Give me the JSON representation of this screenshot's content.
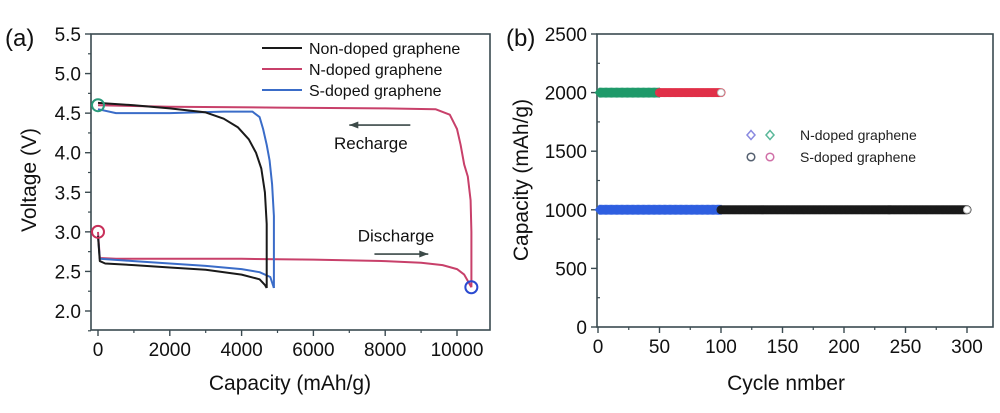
{
  "chart_data": [
    {
      "panel": "(a)",
      "type": "line",
      "title": "",
      "xlabel": "Capacity (mAh/g)",
      "ylabel": "Voltage (V)",
      "xlim": [
        -300,
        11000
      ],
      "ylim": [
        1.75,
        5.5
      ],
      "xticks": [
        0,
        2000,
        4000,
        6000,
        8000,
        10000
      ],
      "xtick_labels": [
        "0",
        "2000",
        "4000",
        "6000",
        "8000",
        "10000"
      ],
      "yticks": [
        2.0,
        2.5,
        3.0,
        3.5,
        4.0,
        4.5,
        5.0,
        5.5
      ],
      "ytick_labels": [
        "2.0",
        "2.5",
        "3.0",
        "3.5",
        "4.0",
        "4.5",
        "5.0",
        "5.5"
      ],
      "grid": false,
      "legend_position": "top-right",
      "series": [
        {
          "name": "Non-doped graphene",
          "color": "#1a1a1a",
          "discharge": {
            "x": [
              0,
              50,
              200,
              1000,
              2000,
              3000,
              4000,
              4500,
              4650,
              4700
            ],
            "y": [
              2.95,
              2.63,
              2.6,
              2.58,
              2.55,
              2.52,
              2.46,
              2.4,
              2.33,
              2.29
            ]
          },
          "recharge": {
            "x": [
              4700,
              4700,
              4650,
              4550,
              4400,
              4200,
              3900,
              3500,
              3000,
              2000,
              1000,
              0
            ],
            "y": [
              2.29,
              3.1,
              3.5,
              3.8,
              4.0,
              4.17,
              4.32,
              4.43,
              4.51,
              4.56,
              4.6,
              4.63
            ]
          }
        },
        {
          "name": "N-doped graphene",
          "color": "#c8406a",
          "discharge": {
            "x": [
              0,
              50,
              500,
              2000,
              4000,
              6000,
              8000,
              9000,
              9600,
              10000,
              10200,
              10400
            ],
            "y": [
              3.0,
              2.67,
              2.66,
              2.66,
              2.66,
              2.65,
              2.63,
              2.61,
              2.58,
              2.53,
              2.46,
              2.3
            ]
          },
          "recharge": {
            "x": [
              10400,
              10400,
              10380,
              10300,
              10200,
              10100,
              10000,
              9800,
              9400,
              8000,
              5000,
              2000,
              0
            ],
            "y": [
              2.3,
              3.0,
              3.4,
              3.7,
              3.85,
              4.1,
              4.3,
              4.48,
              4.55,
              4.56,
              4.57,
              4.58,
              4.6
            ]
          }
        },
        {
          "name": "S-doped graphene",
          "color": "#3a6cc8",
          "discharge": {
            "x": [
              0,
              50,
              1000,
              2000,
              3000,
              4000,
              4500,
              4800,
              4900
            ],
            "y": [
              2.95,
              2.66,
              2.63,
              2.6,
              2.57,
              2.53,
              2.49,
              2.43,
              2.29
            ]
          },
          "recharge": {
            "x": [
              4900,
              4900,
              4850,
              4780,
              4700,
              4600,
              4500,
              4300,
              3500,
              2000,
              500,
              0
            ],
            "y": [
              2.29,
              3.2,
              3.6,
              3.9,
              4.1,
              4.3,
              4.45,
              4.52,
              4.52,
              4.5,
              4.5,
              4.55
            ]
          }
        }
      ],
      "markers": [
        {
          "name": "start-recharge-circle",
          "x": 0,
          "y": 4.6,
          "color": "#2a9a7a"
        },
        {
          "name": "start-discharge-circle",
          "x": 0,
          "y": 3.0,
          "color": "#c8305a"
        },
        {
          "name": "end-discharge-circle",
          "x": 10400,
          "y": 2.3,
          "color": "#2a4ad0"
        }
      ],
      "annotations": [
        {
          "text": "Recharge",
          "x": 7600,
          "y": 4.05,
          "arrow": {
            "from": [
              8700,
              4.35
            ],
            "to": [
              7000,
              4.35
            ]
          }
        },
        {
          "text": "Discharge",
          "x": 8300,
          "y": 2.88,
          "arrow": {
            "from": [
              7700,
              2.72
            ],
            "to": [
              9200,
              2.72
            ]
          }
        }
      ]
    },
    {
      "panel": "(b)",
      "type": "scatter",
      "title": "",
      "xlabel": "Cycle nmber",
      "ylabel": "Capacity (mAh/g)",
      "xlim": [
        0,
        320
      ],
      "ylim": [
        0,
        2500
      ],
      "xticks": [
        0,
        50,
        100,
        150,
        200,
        250,
        300
      ],
      "xtick_labels": [
        "0",
        "50",
        "100",
        "150",
        "200",
        "250",
        "300"
      ],
      "yticks": [
        0,
        500,
        1000,
        1500,
        2000,
        2500
      ],
      "ytick_labels": [
        "0",
        "500",
        "1000",
        "1500",
        "2000",
        "2500"
      ],
      "grid": false,
      "legend_position": "center-right",
      "legend": [
        {
          "label": "N-doped graphene",
          "markers": [
            {
              "shape": "diamond",
              "color": "#8a8ae0"
            },
            {
              "shape": "diamond",
              "color": "#5ab89a"
            }
          ]
        },
        {
          "label": "S-doped graphene",
          "markers": [
            {
              "shape": "circle",
              "color": "#556070"
            },
            {
              "shape": "circle",
              "color": "#d070a8"
            }
          ]
        }
      ],
      "series": [
        {
          "name": "N-doped graphene (1000 mAh/g)",
          "marker": "diamond",
          "color": "#2f5fe0",
          "x_range": [
            1,
            100
          ],
          "y": 1000
        },
        {
          "name": "N-doped graphene (2000 mAh/g)",
          "marker": "diamond",
          "color": "#1f9a6a",
          "x_range": [
            1,
            50
          ],
          "y": 2000
        },
        {
          "name": "S-doped graphene (1000 mAh/g)",
          "marker": "circle",
          "color": "#1a1a1a",
          "x_range": [
            100,
            300
          ],
          "y": 1000
        },
        {
          "name": "S-doped graphene (2000 mAh/g)",
          "marker": "circle",
          "color": "#e03048",
          "x_range": [
            50,
            100
          ],
          "y": 2000
        }
      ]
    }
  ],
  "labels": {
    "panel_a": "(a)",
    "panel_b": "(b)",
    "a_xlabel": "Capacity (mAh/g)",
    "a_ylabel": "Voltage (V)",
    "b_xlabel": "Cycle nmber",
    "b_ylabel": "Capacity (mAh/g)",
    "recharge": "Recharge",
    "discharge": "Discharge",
    "legend_a": [
      "Non-doped graphene",
      "N-doped graphene",
      "S-doped graphene"
    ],
    "legend_b": [
      "N-doped graphene",
      "S-doped graphene"
    ]
  }
}
